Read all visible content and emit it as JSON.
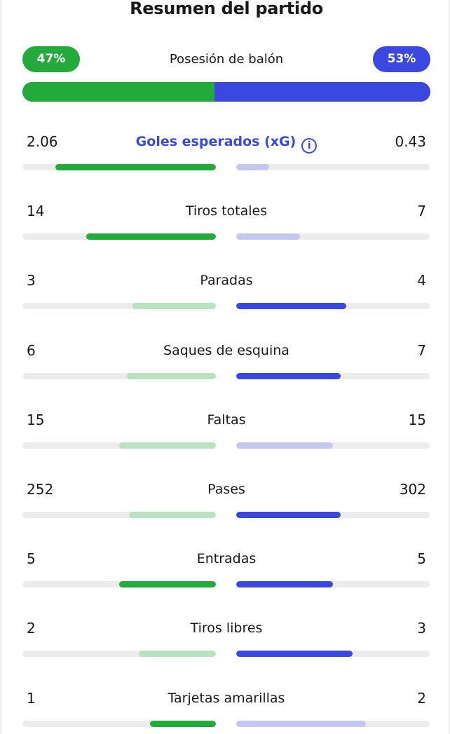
{
  "title": "Resumen del partido",
  "possession": {
    "label": "Posesión de balón",
    "home_label": "47%",
    "away_label": "53%",
    "home_pct": 47,
    "away_pct": 53
  },
  "colors": {
    "home_strong": "#22ab3a",
    "home_weak": "#b9e2c0",
    "away_strong": "#3a48e0",
    "away_weak": "#c4c8f1",
    "track": "#ececec"
  },
  "stats": [
    {
      "label": "Goles esperados (xG)",
      "home": "2.06",
      "away": "0.43",
      "home_bar": 0.83,
      "away_bar": 0.17,
      "leader": "home",
      "link": true,
      "icon": "info-icon"
    },
    {
      "label": "Tiros totales",
      "home": "14",
      "away": "7",
      "home_bar": 0.67,
      "away_bar": 0.33,
      "leader": "home"
    },
    {
      "label": "Paradas",
      "home": "3",
      "away": "4",
      "home_bar": 0.43,
      "away_bar": 0.57,
      "leader": "away"
    },
    {
      "label": "Saques de esquina",
      "home": "6",
      "away": "7",
      "home_bar": 0.46,
      "away_bar": 0.54,
      "leader": "away"
    },
    {
      "label": "Faltas",
      "home": "15",
      "away": "15",
      "home_bar": 0.5,
      "away_bar": 0.5,
      "leader": "none"
    },
    {
      "label": "Pases",
      "home": "252",
      "away": "302",
      "home_bar": 0.45,
      "away_bar": 0.54,
      "leader": "away"
    },
    {
      "label": "Entradas",
      "home": "5",
      "away": "5",
      "home_bar": 0.5,
      "away_bar": 0.5,
      "leader": "both"
    },
    {
      "label": "Tiros libres",
      "home": "2",
      "away": "3",
      "home_bar": 0.4,
      "away_bar": 0.6,
      "leader": "away"
    },
    {
      "label": "Tarjetas amarillas",
      "home": "1",
      "away": "2",
      "home_bar": 0.34,
      "away_bar": 0.67,
      "leader": "home"
    }
  ]
}
